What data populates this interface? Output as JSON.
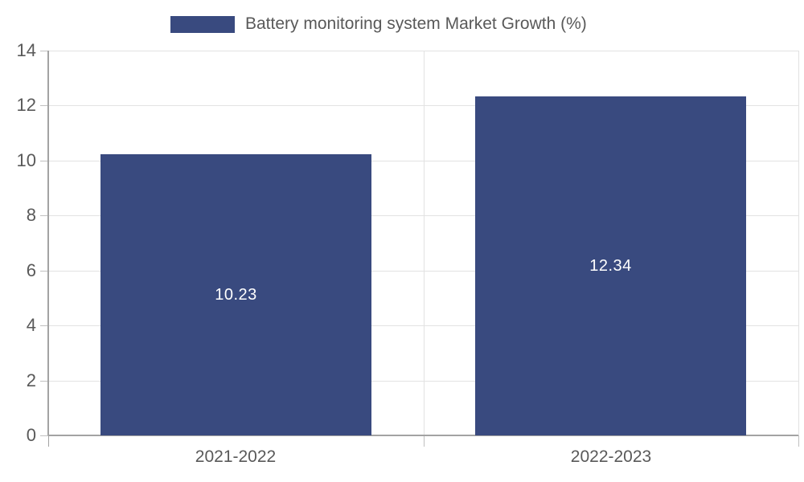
{
  "chart_data": {
    "type": "bar",
    "title": "",
    "legend": {
      "label": "Battery monitoring system Market Growth (%)",
      "position": "top"
    },
    "categories": [
      "2021-2022",
      "2022-2023"
    ],
    "values": [
      10.23,
      12.34
    ],
    "value_labels": [
      "10.23",
      "12.34"
    ],
    "xlabel": "",
    "ylabel": "",
    "ylim": [
      0,
      14
    ],
    "yticks": [
      0,
      2,
      4,
      6,
      8,
      10,
      12,
      14
    ],
    "grid": true,
    "colors": {
      "bar": "#394A7F",
      "bar_label": "#FFFFFF",
      "grid_line": "#E2E2E2",
      "axis_line": "#A3A3A3",
      "tick_mark": "#C0C0C0",
      "tick_text": "#595959",
      "legend_text": "#595959",
      "background": "#FFFFFF"
    }
  }
}
